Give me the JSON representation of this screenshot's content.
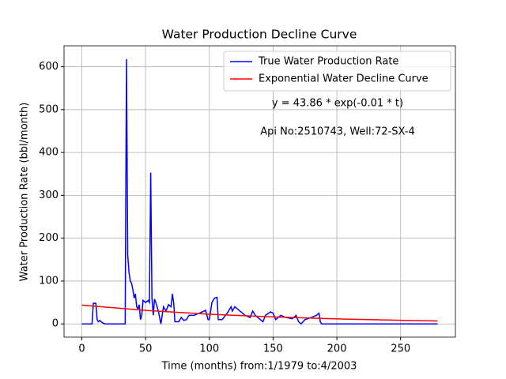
{
  "chart_data": {
    "type": "line",
    "title": "Water Production Decline Curve",
    "xlabel": "Time (months) from:1/1979 to:4/2003",
    "ylabel": "Water Production Rate (bbl/month)",
    "annotations": [
      "y = 43.86 * exp(-0.01 * t)",
      "Api No:2510743, Well:72-SX-4"
    ],
    "xlim": [
      -13.95,
      292.95
    ],
    "ylim": [
      -30.9,
      648.9
    ],
    "xticks": [
      0,
      50,
      100,
      150,
      200,
      250
    ],
    "yticks": [
      0,
      100,
      200,
      300,
      400,
      500,
      600
    ],
    "grid": true,
    "legend": "upper right",
    "series": [
      {
        "name": "True Water Production Rate",
        "color": "#0000ff",
        "x": [
          0,
          8,
          9,
          11,
          12,
          13,
          14,
          16,
          18,
          34,
          35,
          36,
          37,
          38,
          39,
          40,
          41,
          42,
          43,
          44,
          45,
          46,
          47,
          48,
          50,
          52,
          53,
          54,
          55,
          56,
          57,
          58,
          60,
          62,
          63,
          64,
          66,
          68,
          70,
          71,
          72,
          73,
          76,
          78,
          80,
          82,
          84,
          88,
          92,
          96,
          97,
          99,
          100,
          102,
          104,
          106,
          107,
          110,
          114,
          117,
          118,
          120,
          124,
          128,
          132,
          134,
          136,
          140,
          142,
          144,
          148,
          150,
          152,
          156,
          160,
          165,
          168,
          170,
          172,
          175,
          180,
          184,
          186,
          187,
          188,
          279
        ],
        "values": [
          0,
          0,
          48,
          48,
          10,
          5,
          8,
          3,
          0,
          0,
          618,
          160,
          120,
          100,
          95,
          80,
          60,
          70,
          40,
          35,
          45,
          10,
          20,
          55,
          50,
          55,
          50,
          353,
          60,
          20,
          58,
          50,
          30,
          0,
          20,
          40,
          30,
          45,
          40,
          70,
          50,
          5,
          5,
          15,
          8,
          10,
          20,
          20,
          25,
          30,
          32,
          10,
          10,
          50,
          60,
          62,
          10,
          10,
          25,
          40,
          30,
          40,
          30,
          20,
          15,
          30,
          20,
          10,
          5,
          20,
          28,
          25,
          10,
          20,
          15,
          12,
          20,
          5,
          0,
          10,
          15,
          20,
          25,
          5,
          0,
          0
        ]
      },
      {
        "name": "Exponential Water Decline Curve",
        "color": "#ff0000",
        "x": [
          0,
          50,
          100,
          150,
          200,
          250,
          279
        ],
        "values": [
          43.9,
          31.5,
          22.6,
          16.3,
          11.7,
          8.4,
          6.9
        ]
      }
    ]
  }
}
